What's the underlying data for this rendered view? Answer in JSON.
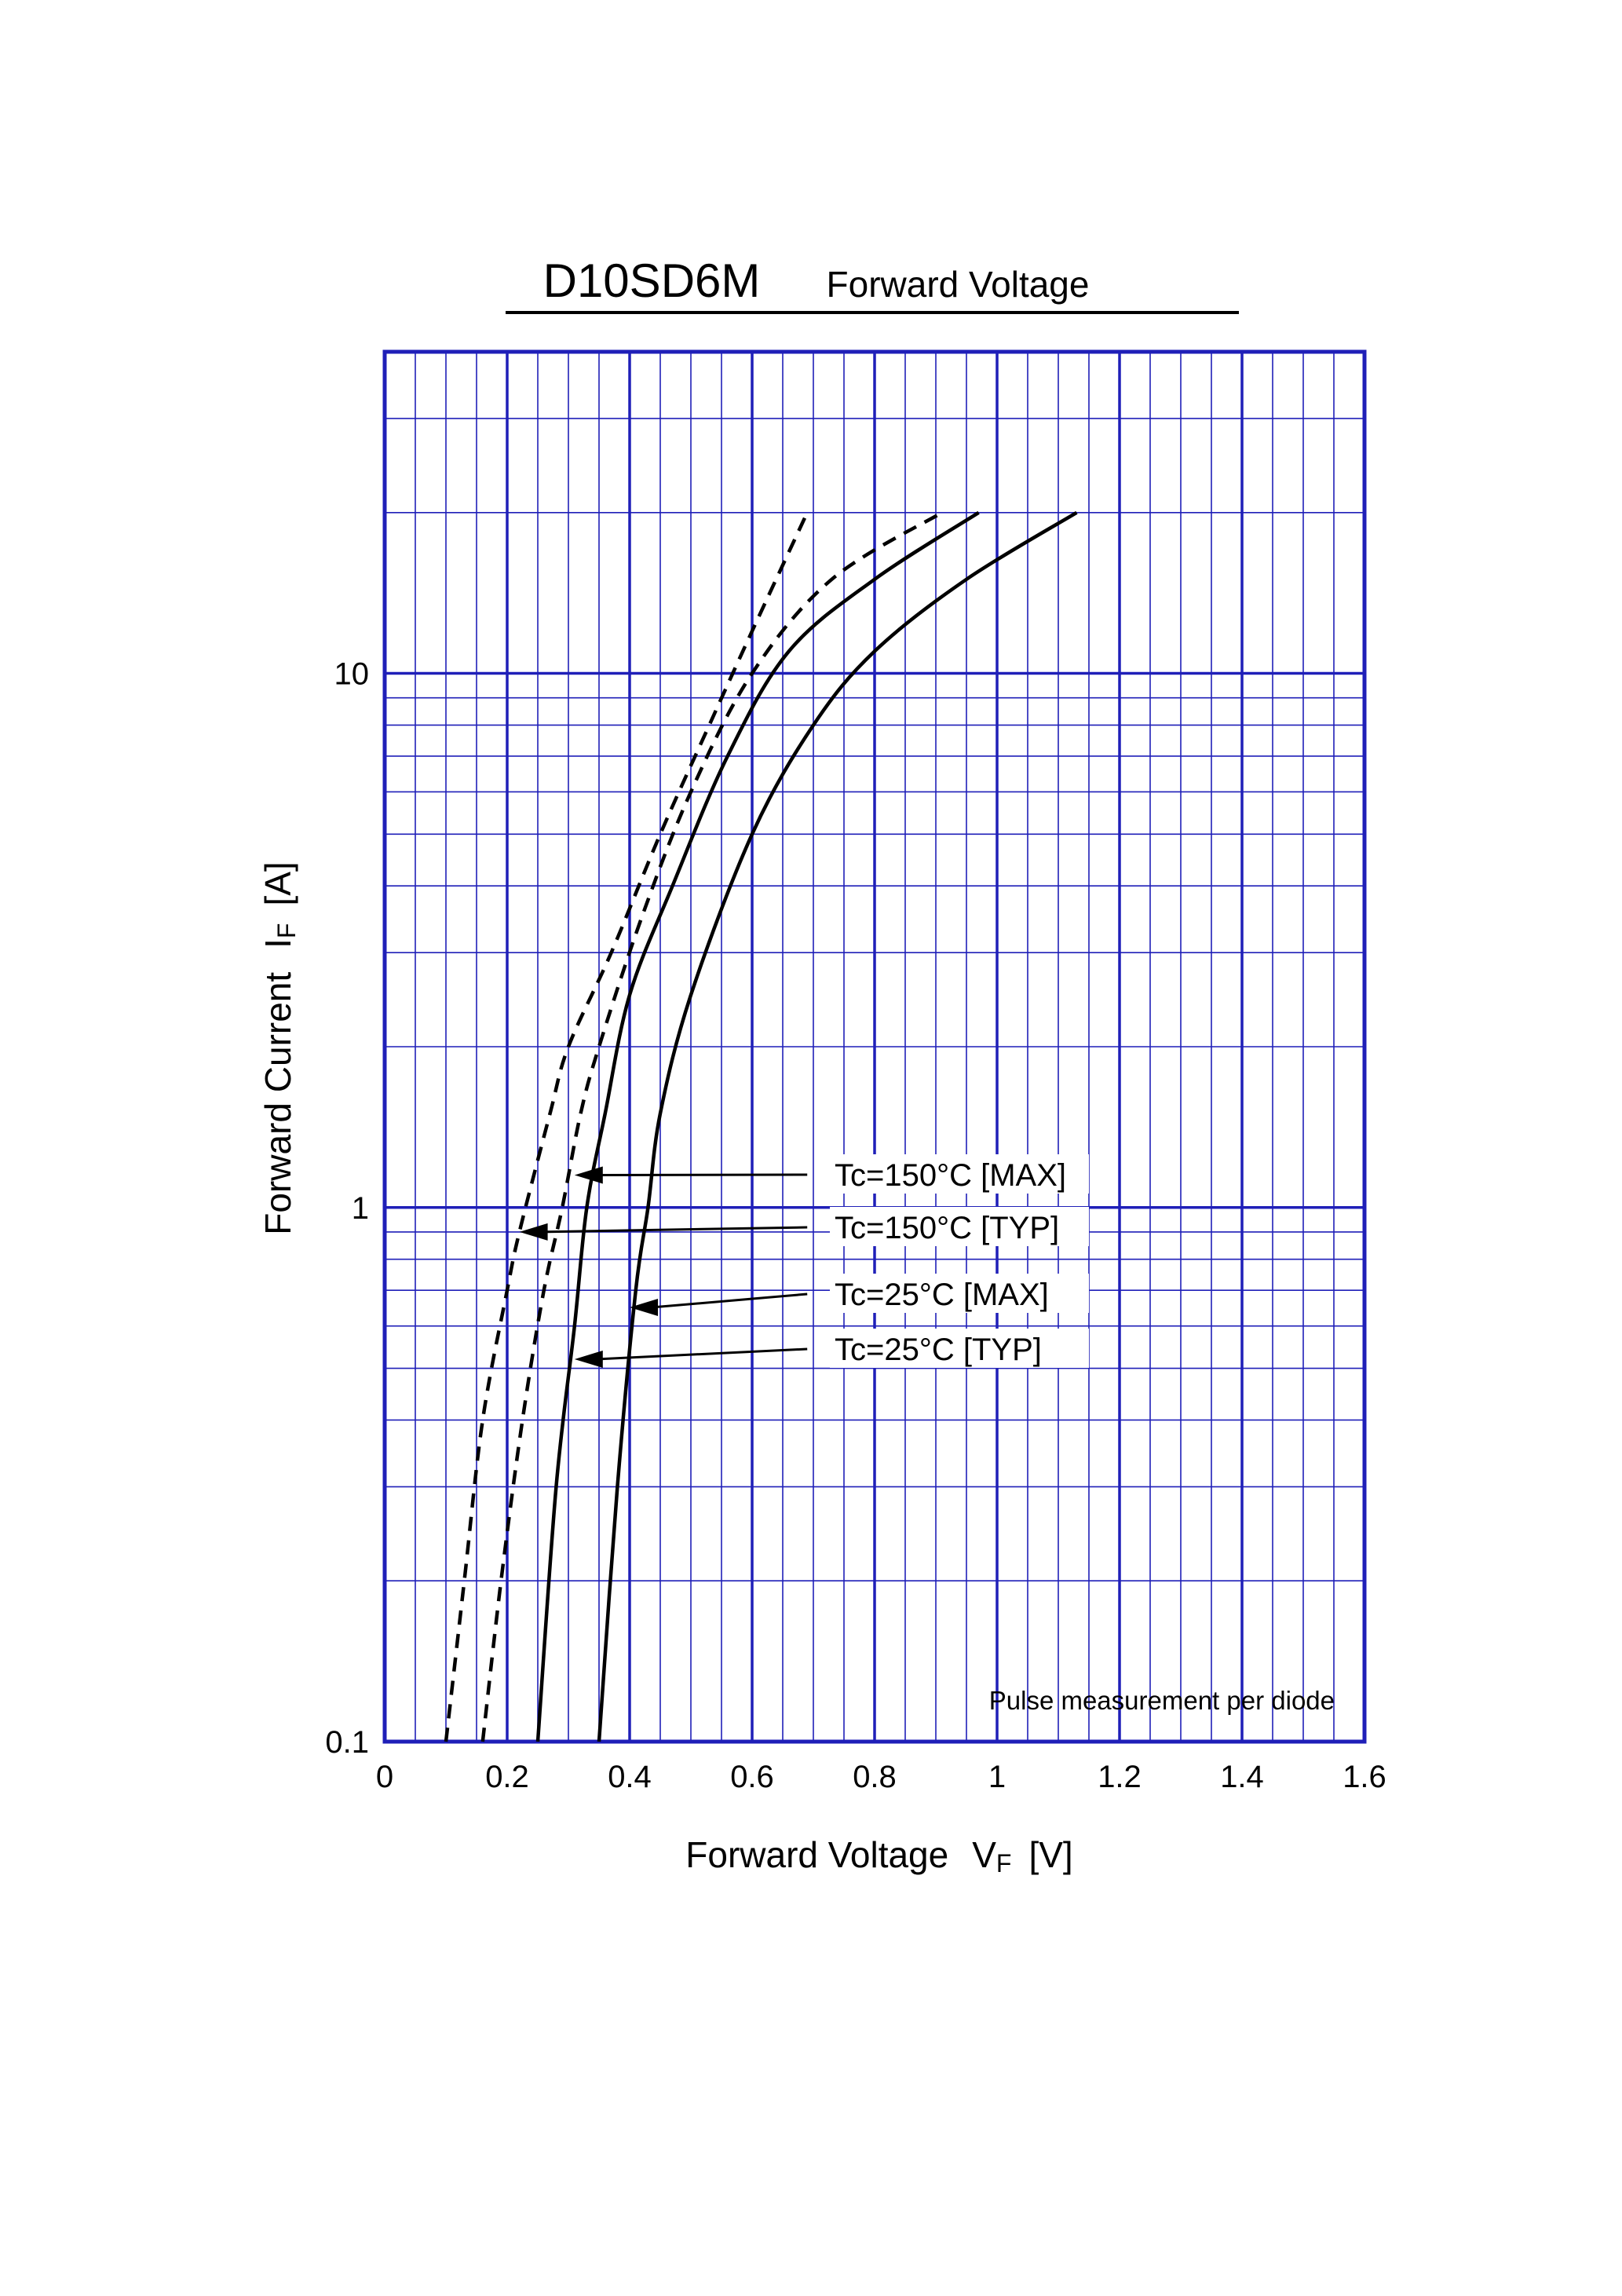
{
  "colors": {
    "grid": "#1f1fb8",
    "curve": "#000000",
    "background": "#ffffff"
  },
  "header": {
    "part_number": "D10SD6M",
    "chart_name": "Forward Voltage"
  },
  "axes": {
    "x_label_main": "Forward Voltage",
    "x_label_symbol": "V",
    "x_label_sub": "F",
    "x_label_unit": "[V]",
    "y_label_main": "Forward Current",
    "y_label_symbol": "I",
    "y_label_sub": "F",
    "y_label_unit": "[A]"
  },
  "note": "Pulse measurement per diode",
  "chart_data": {
    "type": "line",
    "title": "D10SD6M Forward Voltage",
    "xlabel": "Forward Voltage VF [V]",
    "ylabel": "Forward Current IF [A]",
    "xlim": [
      0,
      1.6
    ],
    "ylim": [
      0.1,
      40
    ],
    "y_scale": "log",
    "grid": true,
    "x_ticks": [
      0,
      0.2,
      0.4,
      0.6,
      0.8,
      1.0,
      1.2,
      1.4,
      1.6
    ],
    "x_tick_labels": [
      "0",
      "0.2",
      "0.4",
      "0.6",
      "0.8",
      "1",
      "1.2",
      "1.4",
      "1.6"
    ],
    "y_ticks": [
      0.1,
      1,
      10
    ],
    "y_tick_labels": [
      "0.1",
      "1",
      "10"
    ],
    "series": [
      {
        "name": "Tc=150°C [MAX]",
        "style": "dashed",
        "points": [
          [
            0.16,
            0.1
          ],
          [
            0.19,
            0.2
          ],
          [
            0.225,
            0.4
          ],
          [
            0.26,
            0.7
          ],
          [
            0.29,
            1.0
          ],
          [
            0.32,
            1.5
          ],
          [
            0.35,
            2.0
          ],
          [
            0.42,
            3.5
          ],
          [
            0.5,
            6.0
          ],
          [
            0.6,
            10.0
          ],
          [
            0.73,
            15.0
          ],
          [
            0.91,
            20.0
          ]
        ]
      },
      {
        "name": "Tc=150°C [TYP]",
        "style": "dashed",
        "points": [
          [
            0.1,
            0.1
          ],
          [
            0.13,
            0.2
          ],
          [
            0.16,
            0.4
          ],
          [
            0.2,
            0.7
          ],
          [
            0.22,
            0.9
          ],
          [
            0.27,
            1.5
          ],
          [
            0.3,
            2.0
          ],
          [
            0.37,
            3.0
          ],
          [
            0.45,
            5.0
          ],
          [
            0.53,
            8.0
          ],
          [
            0.6,
            12.0
          ],
          [
            0.69,
            20.0
          ]
        ]
      },
      {
        "name": "Tc=25°C [MAX]",
        "style": "solid",
        "points": [
          [
            0.35,
            0.1
          ],
          [
            0.38,
            0.3
          ],
          [
            0.41,
            0.7
          ],
          [
            0.43,
            1.0
          ],
          [
            0.45,
            1.5
          ],
          [
            0.5,
            2.5
          ],
          [
            0.6,
            5.0
          ],
          [
            0.7,
            8.0
          ],
          [
            0.8,
            11.0
          ],
          [
            0.95,
            15.0
          ],
          [
            1.13,
            20.0
          ]
        ]
      },
      {
        "name": "Tc=25°C [TYP]",
        "style": "solid",
        "points": [
          [
            0.25,
            0.1
          ],
          [
            0.28,
            0.3
          ],
          [
            0.31,
            0.6
          ],
          [
            0.33,
            1.0
          ],
          [
            0.36,
            1.5
          ],
          [
            0.4,
            2.5
          ],
          [
            0.47,
            4.0
          ],
          [
            0.56,
            7.0
          ],
          [
            0.66,
            11.0
          ],
          [
            0.8,
            15.0
          ],
          [
            0.97,
            20.0
          ]
        ]
      }
    ],
    "annotations": [
      {
        "label": "Tc=150°C [MAX]",
        "arrow_to": [
          0.31,
          1.15
        ]
      },
      {
        "label": "Tc=150°C [TYP]",
        "arrow_to": [
          0.22,
          0.9
        ]
      },
      {
        "label": "Tc=25°C [MAX]",
        "arrow_to": [
          0.4,
          0.65
        ]
      },
      {
        "label": "Tc=25°C [TYP]",
        "arrow_to": [
          0.31,
          0.52
        ]
      }
    ]
  }
}
